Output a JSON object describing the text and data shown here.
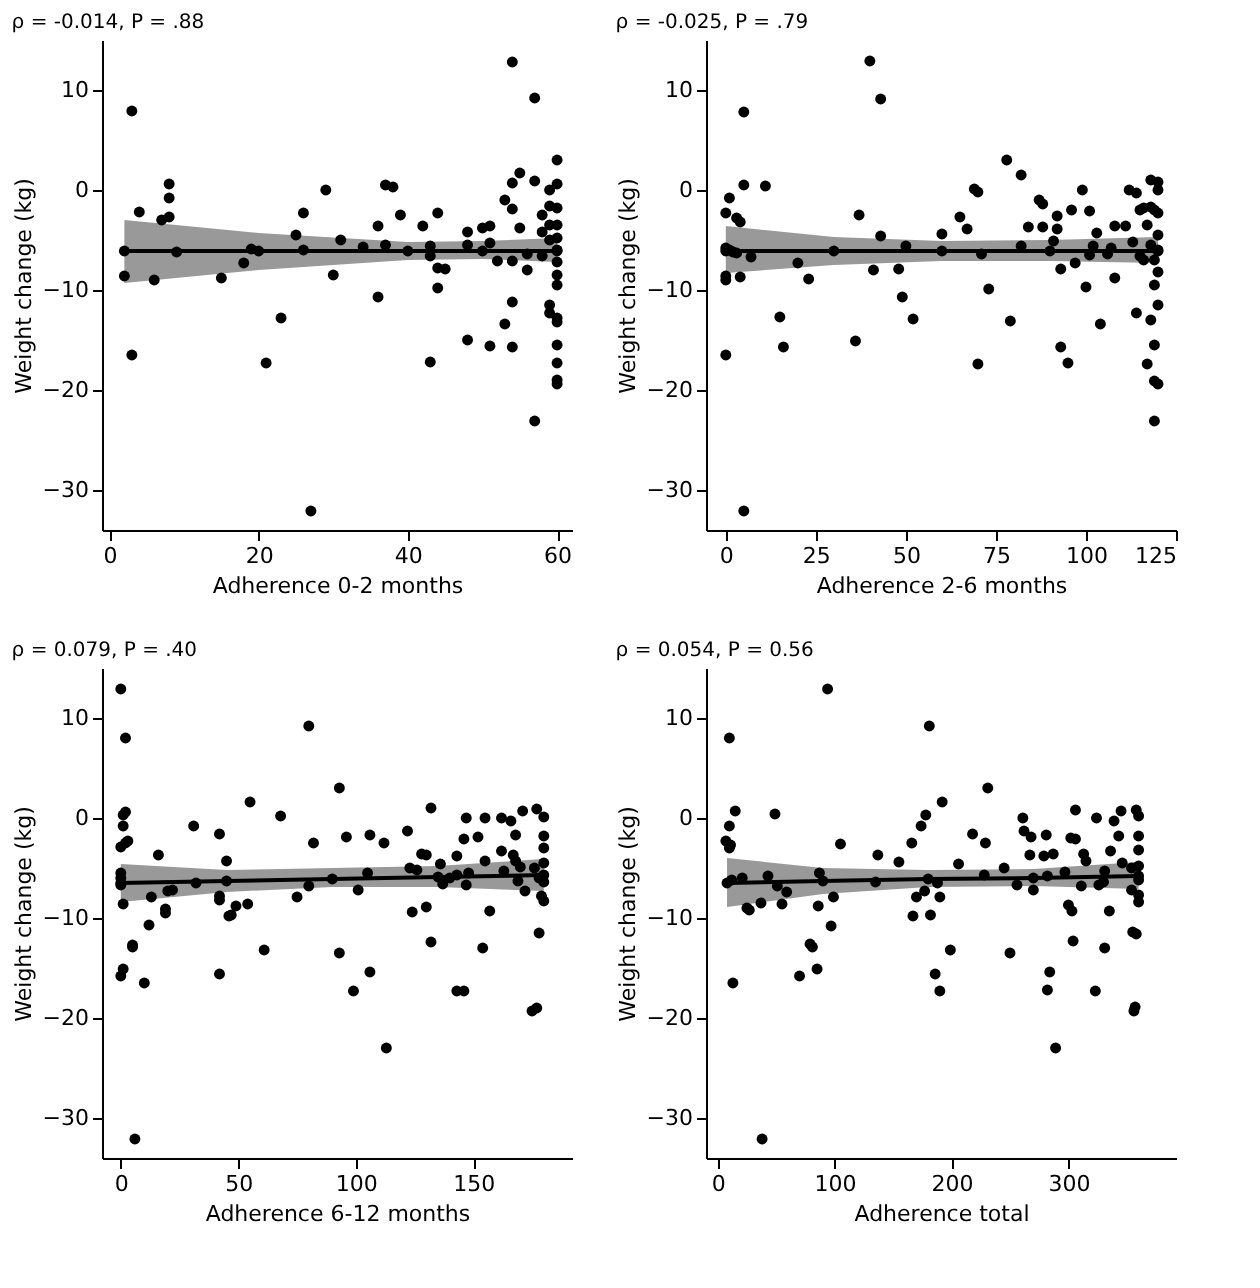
{
  "chart_data": [
    {
      "type": "scatter",
      "title": "ρ = -0.014, P = .88",
      "xlabel": "Adherence 0-2 months",
      "ylabel": "Weight change (kg)",
      "xlim": [
        -1,
        62
      ],
      "xticks": [
        0,
        20,
        40,
        60
      ],
      "ylim": [
        -34,
        15
      ],
      "yticks": [
        -30,
        -20,
        -10,
        0,
        10
      ],
      "grid": false,
      "marker": "circle",
      "series": [
        {
          "color": "#000000",
          "x": [
            2,
            3,
            3,
            4,
            6,
            7,
            8,
            8,
            8,
            9,
            15,
            18,
            19,
            21,
            23,
            25,
            26,
            26,
            27,
            29,
            30,
            31,
            34,
            36,
            36,
            37,
            37,
            38,
            39,
            42,
            43,
            43,
            43,
            44,
            44,
            44,
            45,
            48,
            48,
            48,
            50,
            51,
            51,
            51,
            52,
            53,
            53,
            54,
            54,
            54,
            54,
            54,
            54,
            55,
            55,
            56,
            56,
            57,
            57,
            57,
            58,
            58,
            58,
            59,
            59,
            59,
            59,
            59,
            59,
            60,
            60,
            60,
            60,
            60,
            60,
            60,
            60,
            60,
            60,
            60,
            60,
            60,
            60,
            60
          ],
          "values": [
            -8.6,
            7.9,
            -16.5,
            -2.2,
            -9,
            -3,
            0.6,
            -0.8,
            -2.7,
            -6.2,
            -8.8,
            -7.3,
            -5.9,
            -17.3,
            -12.8,
            -4.5,
            -2.3,
            -6,
            -32.1,
            0,
            -8.5,
            -5,
            -5.7,
            -3.6,
            -10.7,
            0.5,
            -5.5,
            0.3,
            -2.5,
            -3.6,
            -5.6,
            -6.6,
            -17.2,
            -2.3,
            -7.8,
            -9.8,
            -7.9,
            -4.2,
            -5.5,
            -15,
            -3.8,
            -3.6,
            -5.3,
            -15.6,
            -7.1,
            -1,
            -13.4,
            12.8,
            0.7,
            -1.9,
            -7.1,
            -11.2,
            -15.7,
            1.7,
            -3.8,
            -6.4,
            -8,
            9.2,
            0.9,
            -23.1,
            -2.5,
            -4.2,
            -6.6,
            0,
            -1.6,
            -3.5,
            -5,
            -11.5,
            -12.3,
            3,
            0.6,
            -1.8,
            -3.5,
            -4.8,
            -6,
            -7.2,
            -8.5,
            -9.5,
            -12.8,
            -13.2,
            -15.5,
            -17.3,
            -19,
            -19.4
          ]
        },
        {
          "type": "line",
          "color": "#000000",
          "x": [
            2,
            20,
            40,
            50,
            60
          ],
          "values": [
            -6.1,
            -6.1,
            -6.1,
            -6.1,
            -6.1
          ],
          "lower": [
            -9.3,
            -8.0,
            -7.0,
            -6.9,
            -7.2
          ],
          "upper": [
            -3.0,
            -4.3,
            -5.2,
            -5.1,
            -4.8
          ]
        }
      ]
    },
    {
      "type": "scatter",
      "title": "ρ = -0.025, P = .79",
      "xlabel": "Adherence 2-6 months",
      "ylabel": "Weight change (kg)",
      "xlim": [
        -5.5,
        125
      ],
      "xticks": [
        0,
        25,
        50,
        75,
        100,
        125
      ],
      "ylim": [
        -34,
        15
      ],
      "yticks": [
        -30,
        -20,
        -10,
        0,
        10
      ],
      "grid": false,
      "marker": "circle",
      "series": [
        {
          "color": "#000000",
          "x": [
            0,
            0,
            0,
            0,
            0,
            1,
            1,
            2,
            3,
            3,
            4,
            4,
            5,
            5,
            5,
            7,
            11,
            15,
            16,
            20,
            23,
            36,
            37,
            40,
            41,
            43,
            43,
            48,
            49,
            50,
            52,
            60,
            65,
            67,
            69,
            70,
            70,
            71,
            73,
            78,
            79,
            82,
            82,
            84,
            87,
            88,
            88,
            91,
            92,
            92,
            93,
            93,
            95,
            96,
            97,
            99,
            100,
            101,
            101,
            102,
            103,
            104,
            106,
            107,
            108,
            108,
            111,
            112,
            113,
            114,
            114,
            115,
            115,
            116,
            116,
            117,
            117,
            118,
            118,
            118,
            118,
            119,
            119,
            119,
            119,
            119,
            119,
            120,
            120,
            120,
            120,
            120,
            120,
            120,
            120
          ],
          "values": [
            -2.3,
            -5.8,
            -8.6,
            -9,
            -16.5,
            -0.8,
            -6,
            -6.2,
            -6.3,
            -2.8,
            -3.2,
            -8.7,
            7.8,
            0.5,
            -32.1,
            -6.7,
            0.4,
            -12.7,
            -15.7,
            -7.3,
            -8.9,
            -15.1,
            -2.5,
            12.9,
            -8,
            9.1,
            -4.6,
            -7.9,
            -10.7,
            -5.6,
            -12.9,
            -4.4,
            -2.7,
            -3.9,
            0.1,
            -0.2,
            -17.4,
            -6.4,
            -9.9,
            3,
            -13.1,
            1.5,
            -5.6,
            -3.7,
            -1,
            -1.4,
            -3.7,
            -5.1,
            -2.6,
            -3.9,
            -7.9,
            -15.7,
            -17.3,
            -2,
            -7.3,
            0,
            -9.7,
            -2.1,
            -6.5,
            -5.6,
            -4.3,
            -13.4,
            -6.4,
            -5.8,
            -3.6,
            -8.8,
            -3.6,
            0,
            -5.2,
            -0.3,
            -12.3,
            -2,
            -6.6,
            -1.8,
            -7,
            -3.5,
            -17.4,
            1,
            -1.7,
            -5.5,
            -13,
            -2,
            -7,
            -9.5,
            -15.5,
            -19.1,
            -23.1,
            0.8,
            0,
            -2.3,
            -4.5,
            -6,
            -8.2,
            -11.5,
            -19.4
          ]
        },
        {
          "type": "line",
          "color": "#000000",
          "x": [
            0,
            30,
            60,
            90,
            120
          ],
          "values": [
            -6.1,
            -6.1,
            -6.1,
            -6.1,
            -6.1
          ],
          "lower": [
            -8.3,
            -7.5,
            -7.1,
            -7.1,
            -7.3
          ],
          "upper": [
            -3.6,
            -4.7,
            -5.1,
            -5.0,
            -4.7
          ]
        }
      ]
    },
    {
      "type": "scatter",
      "title": "ρ = 0.079, P = .40",
      "xlabel": "Adherence 6-12 months",
      "ylabel": "Weight change (kg)",
      "xlim": [
        -8,
        192
      ],
      "xticks": [
        0,
        50,
        100,
        150
      ],
      "ylim": [
        -34,
        15
      ],
      "yticks": [
        -30,
        -20,
        -10,
        0,
        10
      ],
      "grid": false,
      "marker": "circle",
      "series": [
        {
          "color": "#000000",
          "x": [
            0,
            0,
            0,
            0,
            0,
            0,
            1,
            1,
            1,
            1,
            2,
            2,
            2,
            3,
            5,
            5,
            6,
            10,
            12,
            13,
            16,
            19,
            19,
            20,
            22,
            31,
            32,
            42,
            42,
            42,
            42,
            45,
            46,
            47,
            49,
            54,
            55,
            61,
            68,
            75,
            80,
            80,
            82,
            93,
            93,
            96,
            99,
            101,
            105,
            106,
            106,
            113,
            112,
            122,
            123,
            124,
            126,
            128,
            130,
            130,
            132,
            132,
            136,
            137,
            140,
            143,
            143,
            143,
            146,
            146,
            147,
            147,
            148,
            152,
            154,
            155,
            155,
            157,
            162,
            162,
            163,
            166,
            167,
            168,
            168,
            169,
            170,
            171,
            172,
            175,
            176,
            177,
            177,
            178,
            178,
            179,
            180,
            180,
            180,
            180,
            180,
            180
          ],
          "values": [
            12.9,
            -2.9,
            -5.5,
            -6,
            -6.7,
            -15.8,
            -0.8,
            -15.1,
            -8.6,
            0.3,
            8,
            0.6,
            -2.5,
            -2.3,
            -12.7,
            -12.9,
            -32.1,
            -16.5,
            -10.7,
            -7.9,
            -3.7,
            -9.1,
            -9.5,
            -7.3,
            -7.2,
            -0.8,
            -6.5,
            -1.6,
            -7.8,
            -8.2,
            -15.6,
            -4.3,
            -9.8,
            -9.7,
            -8.8,
            -8.6,
            1.6,
            -13.2,
            0.2,
            -7.9,
            9.2,
            -6.8,
            -2.5,
            3,
            -13.5,
            -1.9,
            -17.3,
            -7.2,
            -5.5,
            -1.7,
            -15.4,
            -23,
            -2.5,
            -1.3,
            -5,
            -9.4,
            -5.2,
            -3.6,
            -3.7,
            -8.9,
            1,
            -12.4,
            -4.6,
            -6.6,
            -6,
            -3.8,
            -5.7,
            -17.3,
            -2.1,
            -17.3,
            0,
            -6.7,
            -5.5,
            -1.9,
            -13,
            0,
            -4.3,
            -9.3,
            0,
            -3.3,
            -5.3,
            -0.3,
            -3.7,
            -1.7,
            -4.3,
            -6.3,
            -4.9,
            0.7,
            -7.3,
            -19.3,
            -5,
            0.9,
            -19,
            -6,
            -11.5,
            -7.8,
            0.1,
            -1.8,
            -3,
            -4.5,
            -6.4,
            -8.3
          ]
        },
        {
          "type": "line",
          "color": "#000000",
          "x": [
            0,
            45,
            90,
            135,
            180
          ],
          "values": [
            -6.5,
            -6.3,
            -6.1,
            -5.9,
            -5.7
          ],
          "lower": [
            -8.4,
            -7.4,
            -6.9,
            -6.9,
            -7.3
          ],
          "upper": [
            -4.6,
            -5.2,
            -5.0,
            -4.8,
            -4.1
          ]
        }
      ]
    },
    {
      "type": "scatter",
      "title": "ρ = 0.054, P = 0.56",
      "xlabel": "Adherence total",
      "ylabel": "Weight change (kg)",
      "xlim": [
        -10,
        392
      ],
      "xticks": [
        0,
        100,
        200,
        300
      ],
      "ylim": [
        -34,
        15
      ],
      "yticks": [
        -30,
        -20,
        -10,
        0,
        10
      ],
      "grid": false,
      "marker": "circle",
      "series": [
        {
          "color": "#000000",
          "x": [
            7,
            10,
            10,
            10,
            11,
            12,
            13,
            15,
            21,
            25,
            27,
            37,
            38,
            43,
            49,
            51,
            55,
            59,
            70,
            79,
            81,
            85,
            86,
            87,
            94,
            97,
            99,
            105,
            135,
            137,
            155,
            166,
            167,
            170,
            174,
            177,
            178,
            181,
            182,
            186,
            188,
            190,
            190,
            192,
            199,
            206,
            218,
            228,
            229,
            231,
            245,
            250,
            256,
            261,
            262,
            267,
            268,
            270,
            279,
            281,
            282,
            282,
            284,
            287,
            289,
            297,
            300,
            302,
            303,
            304,
            306,
            306,
            311,
            313,
            315,
            323,
            324,
            326,
            330,
            331,
            331,
            335,
            336,
            339,
            343,
            345,
            346,
            354,
            354,
            355,
            356,
            357,
            358,
            358,
            360,
            360,
            360,
            360,
            360,
            360,
            360
          ],
          "values": [
            -2.3,
            8,
            -0.8,
            -3,
            -2.7,
            -6.2,
            -16.5,
            0.7,
            -6,
            -9,
            -9.2,
            -8.5,
            -32.1,
            -5.8,
            0.4,
            -6.8,
            -8.6,
            -7.4,
            -15.8,
            -12.6,
            -12.9,
            -15.1,
            -8.8,
            -5.5,
            12.9,
            -10.8,
            -7.9,
            -2.6,
            -6.4,
            -3.7,
            -4.4,
            -2.5,
            -9.8,
            -7.9,
            -0.8,
            -7.3,
            0.3,
            9.2,
            -9.7,
            -15.6,
            -6.5,
            -17.3,
            -7.9,
            1.6,
            -13.2,
            -4.6,
            -1.6,
            -5.7,
            -2.5,
            3,
            -5,
            -13.5,
            -6.7,
            0,
            -1.3,
            -3.7,
            -1.9,
            -7.2,
            -3.8,
            -1.7,
            -5.8,
            -17.2,
            -15.4,
            -3.6,
            -23,
            -5.4,
            -8.7,
            -2,
            -9.3,
            -12.3,
            0.8,
            -2.1,
            -6.8,
            -3.6,
            -4.3,
            -17.3,
            0,
            -6.7,
            -6.4,
            -13,
            -5.3,
            -9.3,
            -3.3,
            -0.3,
            -1.8,
            0.7,
            -4.5,
            -5,
            -7.2,
            -11.4,
            -19.3,
            -18.9,
            0.8,
            -11.6,
            0.2,
            -1.8,
            -3.2,
            -4.8,
            -6.2,
            -7.7,
            -8.4
          ]
        },
        {
          "type": "line",
          "color": "#000000",
          "x": [
            8,
            90,
            180,
            270,
            360
          ],
          "values": [
            -6.5,
            -6.3,
            -6.1,
            -6.0,
            -5.8
          ],
          "lower": [
            -8.9,
            -7.6,
            -6.9,
            -6.8,
            -7.1
          ],
          "upper": [
            -4.0,
            -5.0,
            -5.2,
            -5.1,
            -4.4
          ]
        }
      ]
    }
  ]
}
